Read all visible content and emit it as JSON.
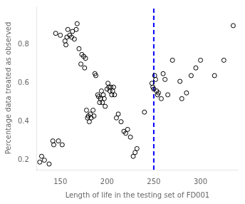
{
  "chart_data": {
    "type": "scatter",
    "x": [
      128,
      130,
      133,
      138,
      142,
      143,
      145,
      148,
      150,
      152,
      155,
      156,
      157,
      158,
      160,
      162,
      163,
      165,
      167,
      168,
      170,
      172,
      173,
      175,
      176,
      177,
      178,
      179,
      180,
      181,
      182,
      183,
      185,
      186,
      187,
      188,
      190,
      191,
      192,
      193,
      194,
      195,
      196,
      197,
      198,
      200,
      201,
      202,
      203,
      204,
      205,
      206,
      207,
      208,
      210,
      212,
      215,
      218,
      220,
      222,
      225,
      228,
      230,
      232,
      240,
      248,
      249,
      250,
      251,
      252,
      253,
      254,
      255,
      258,
      260,
      262,
      265,
      270,
      278,
      280,
      285,
      290,
      295,
      300,
      315,
      325,
      335
    ],
    "values": [
      0.19,
      0.22,
      0.2,
      0.18,
      0.3,
      0.28,
      0.86,
      0.3,
      0.85,
      0.28,
      0.82,
      0.8,
      0.84,
      0.88,
      0.85,
      0.84,
      0.87,
      0.83,
      0.88,
      0.91,
      0.78,
      0.7,
      0.75,
      0.74,
      0.68,
      0.73,
      0.46,
      0.42,
      0.43,
      0.4,
      0.44,
      0.42,
      0.46,
      0.43,
      0.65,
      0.64,
      0.54,
      0.53,
      0.5,
      0.52,
      0.56,
      0.5,
      0.54,
      0.52,
      0.48,
      0.57,
      0.6,
      0.58,
      0.56,
      0.58,
      0.54,
      0.56,
      0.58,
      0.54,
      0.42,
      0.44,
      0.4,
      0.35,
      0.34,
      0.36,
      0.32,
      0.22,
      0.24,
      0.26,
      0.45,
      0.6,
      0.58,
      0.57,
      0.64,
      0.62,
      0.56,
      0.54,
      0.55,
      0.52,
      0.65,
      0.62,
      0.54,
      0.72,
      0.61,
      0.52,
      0.55,
      0.64,
      0.68,
      0.72,
      0.64,
      0.72,
      0.9
    ],
    "color": "#000000",
    "marker": "circle",
    "vline": {
      "x": 250,
      "color": "#0000FF",
      "line_style": "dashed"
    },
    "xlim": [
      125,
      340
    ],
    "ylim": [
      0.15,
      1.0
    ],
    "xticks": [
      150,
      200,
      250,
      300
    ],
    "yticks": [
      0.2,
      0.4,
      0.6,
      0.8
    ],
    "xlabel": "Length of life in the testing set of FD001",
    "ylabel": "Percentage data treated as observed",
    "grid": false
  }
}
